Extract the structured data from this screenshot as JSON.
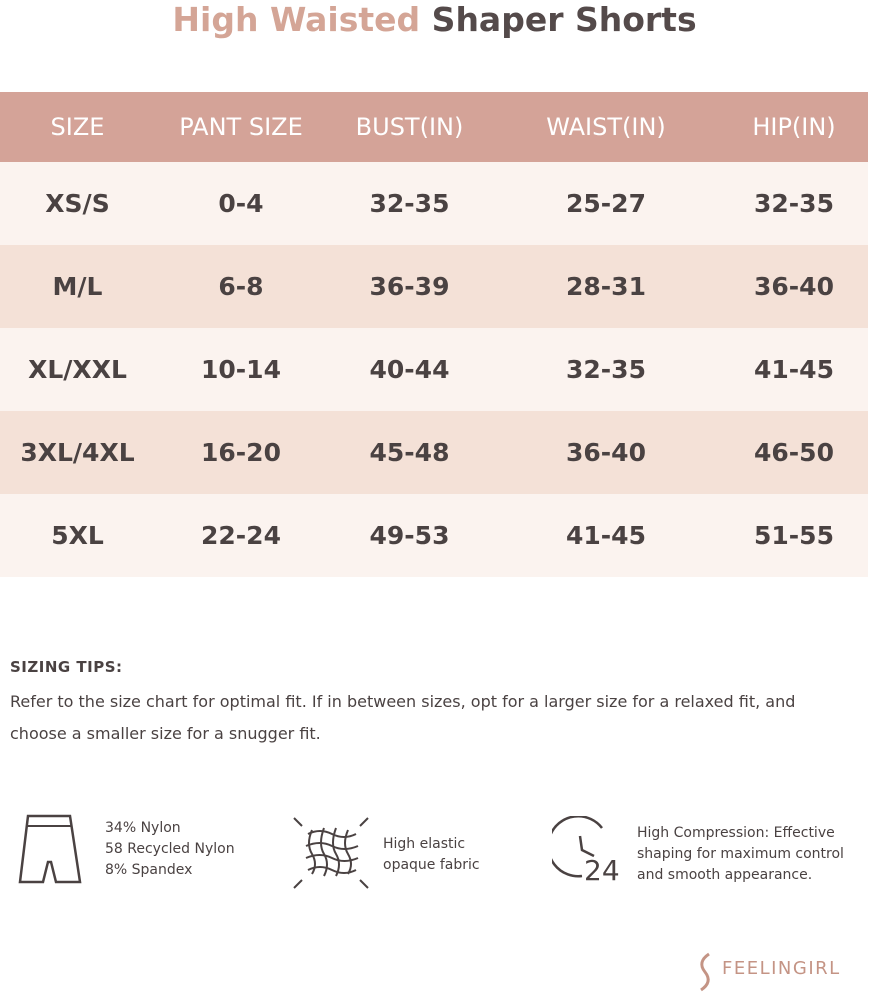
{
  "header": {
    "title_accent": "High Waisted",
    "title_main": "Shaper Shorts"
  },
  "table": {
    "columns": [
      "SIZE",
      "PANT SIZE",
      "BUST(IN)",
      "WAIST(IN)",
      "HIP(IN)"
    ],
    "rows": [
      [
        "XS/S",
        "0-4",
        "32-35",
        "25-27",
        "32-35"
      ],
      [
        "M/L",
        "6-8",
        "36-39",
        "28-31",
        "36-40"
      ],
      [
        "XL/XXL",
        "10-14",
        "40-44",
        "32-35",
        "41-45"
      ],
      [
        "3XL/4XL",
        "16-20",
        "45-48",
        "36-40",
        "46-50"
      ],
      [
        "5XL",
        "22-24",
        "49-53",
        "41-45",
        "51-55"
      ]
    ]
  },
  "tips": {
    "heading": "SIZING TIPS:",
    "lines": [
      "Refer to the size chart for optimal fit. If in between sizes, opt for a  larger size for a relaxed fit, and",
      "choose a smaller size for a snugger fit."
    ]
  },
  "features": [
    {
      "lines": [
        "34% Nylon",
        "58 Recycled Nylon",
        "8% Spandex"
      ]
    },
    {
      "lines": [
        "High elastic",
        "opaque fabric"
      ]
    },
    {
      "lines": [
        "High Compression: Effective",
        "shaping for maximum control",
        "and smooth appearance."
      ]
    }
  ],
  "brand": "FEELINGIRL"
}
